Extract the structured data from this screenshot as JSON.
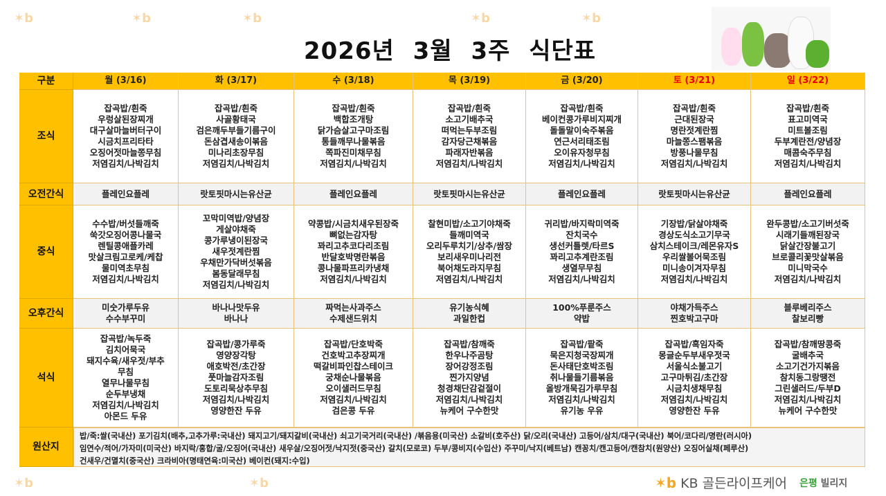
{
  "watermark": "KB골든라이프케어",
  "title": "2026년 3월 3주 식단표",
  "colors": {
    "header_bg": "#ffc000",
    "weekend_text": "#e60000",
    "snack_bg": "#f2f2f2",
    "border": "#e8c27a"
  },
  "header_label": "구분",
  "days": [
    {
      "label": "월 (3/16)",
      "weekend": false
    },
    {
      "label": "화 (3/17)",
      "weekend": false
    },
    {
      "label": "수 (3/18)",
      "weekend": false
    },
    {
      "label": "목 (3/19)",
      "weekend": false
    },
    {
      "label": "금 (3/20)",
      "weekend": false
    },
    {
      "label": "토 (3/21)",
      "weekend": true
    },
    {
      "label": "일 (3/22)",
      "weekend": true
    }
  ],
  "rows": [
    {
      "label": "조식",
      "type": "meal",
      "cells": [
        [
          "잡곡밥/흰죽",
          "우렁살된장찌개",
          "대구살마늘버터구이",
          "시금치프리타타",
          "오징어젓마늘쫑무침",
          "저염김치/나박김치"
        ],
        [
          "잡곡밥/흰죽",
          "사골황태국",
          "검은깨두부들기름구이",
          "돈삼겹새송이볶음",
          "미나리초장무침",
          "저염김치/나박김치"
        ],
        [
          "잡곡밥/흰죽",
          "백합조개탕",
          "닭가슴살고구마조림",
          "통들깨무나물볶음",
          "쪽파진미채무침",
          "저염김치/나박김치"
        ],
        [
          "잡곡밥/흰죽",
          "소고기배추국",
          "떠먹는두부조림",
          "감자당근채볶음",
          "파래자반볶음",
          "저염김치/나박김치"
        ],
        [
          "잡곡밥/흰죽",
          "베이컨콩가루비지찌개",
          "돌돌말이숙주볶음",
          "연근서리태조림",
          "오이유자청무침",
          "저염김치/나박김치"
        ],
        [
          "잡곡밥/흰죽",
          "근대된장국",
          "명란젓계란찜",
          "마늘쫑스팸볶음",
          "방풍나물무침",
          "저염김치/나박김치"
        ],
        [
          "잡곡밥/흰죽",
          "표고미역국",
          "미트볼조림",
          "두부계란전/양념장",
          "매콤숙주무침",
          "저염김치/나박김치"
        ]
      ]
    },
    {
      "label": "오전간식",
      "type": "snack",
      "cells": [
        [
          "플레인요플레"
        ],
        [
          "랏토핏마시는유산균"
        ],
        [
          "플레인요플레"
        ],
        [
          "랏토핏마시는유산균"
        ],
        [
          "플레인요플레"
        ],
        [
          "랏토핏마시는유산균"
        ],
        [
          "플레인요플레"
        ]
      ]
    },
    {
      "label": "중식",
      "type": "meal",
      "cells": [
        [
          "수수밥/버섯들깨죽",
          "쑥갓오징어콩나물국",
          "렌틸콩애플카레",
          "맛살크림고로케/케찹",
          "물미역초무침",
          "저염김치/나박김치"
        ],
        [
          "꼬막미역밥/양념장",
          "게살야채죽",
          "콩가루냉이된장국",
          "새우젓계란찜",
          "우채만가닥버섯볶음",
          "봄동달래무침",
          "저염김치/나박김치"
        ],
        [
          "약콩밥/시금치새우된장죽",
          "뼈없는감자탕",
          "꽈리고추코다리조림",
          "반달호박명란볶음",
          "콩나물파프리카냉채",
          "저염김치/나박김치"
        ],
        [
          "찰현미밥/소고기야채죽",
          "들깨미역국",
          "오리두루치기/상추/쌈장",
          "보리새우미나리전",
          "북어채도라지무침",
          "저염김치/나박김치"
        ],
        [
          "귀리밥/바지락미역죽",
          "잔치국수",
          "생선커틀렛/타르S",
          "꽈리고추계란조림",
          "생열무무침",
          "저염김치/나박김치"
        ],
        [
          "기장밥/닭살야채죽",
          "경상도식소고기무국",
          "삼치스테이크/레몬유자S",
          "우리쌀볼어묵조림",
          "미니송이겨자무침",
          "저염김치/나박김치"
        ],
        [
          "완두콩밥/소고기버섯죽",
          "시래기들깨된장국",
          "닭살간장불고기",
          "브로콜리꽃맛살볶음",
          "미니막국수",
          "저염김치/나박김치"
        ]
      ]
    },
    {
      "label": "오후간식",
      "type": "snack",
      "cells": [
        [
          "미숫가루두유",
          "수수부꾸미"
        ],
        [
          "바나나맛두유",
          "바나나"
        ],
        [
          "짜먹는사과주스",
          "수제샌드위치"
        ],
        [
          "유기농식혜",
          "과일한컵"
        ],
        [
          "100%푸룬주스",
          "약밥"
        ],
        [
          "야채가득주스",
          "찐호박고구마"
        ],
        [
          "블루베리주스",
          "찰보리빵"
        ]
      ]
    },
    {
      "label": "석식",
      "type": "meal",
      "cells": [
        [
          "잡곡밥/녹두죽",
          "김치어묵국",
          "돼지수육/새우젓/부추",
          "무침",
          "열무나물무침",
          "순두부냉채",
          "저염김치/나박김치",
          "아몬드 두유"
        ],
        [
          "잡곡밥/콩가루죽",
          "영양장각탕",
          "애호박전/초간장",
          "풋마늘감자조림",
          "도토리묵상추무침",
          "저염김치/나박김치",
          "영양한잔 두유"
        ],
        [
          "잡곡밥/단호박죽",
          "건호박고추장찌개",
          "떡갈비파인찹스테이크",
          "궁채순나물볶음",
          "오이샐러드무침",
          "저염김치/나박김치",
          "검은콩 두유"
        ],
        [
          "잡곡밥/참깨죽",
          "한우나주곰탕",
          "장어강정조림",
          "찐가지양념",
          "청경채단감겉절이",
          "저염김치/나박김치",
          "뉴케어 구수한맛"
        ],
        [
          "잡곡밥/팥죽",
          "묵은지청국장찌개",
          "돈사태단호박조림",
          "취나물들기름볶음",
          "올방개묵김가루무침",
          "저염김치/나박김치",
          "유기농 우유"
        ],
        [
          "잡곡밥/흑임자죽",
          "몽글순두부새우젓국",
          "서울식소불고기",
          "고구마튀김/초간장",
          "시금치생채무침",
          "저염김치/나박김치",
          "영양한잔 두유"
        ],
        [
          "잡곡밥/참깨땅콩죽",
          "굴배추국",
          "소고기건가지볶음",
          "참치동그랑땡전",
          "그린샐러드/두부D",
          "저염김치/나박김치",
          "뉴케어 구수한맛"
        ]
      ]
    }
  ],
  "origin": {
    "label": "원산지",
    "lines": [
      "밥/죽:쌀(국내산)  포기김치(배추,고추가루:국내산)  돼지고기/돼지갈비(국내산)  쇠고기국거리(국내산) /볶음용(미국산)  소갈비(호주산)  닭/오리(국내산)  고등어/삼치/대구(국내산)  북어/코다리/명란(러시아)",
      "임연수/적어/가자미(미국산)  바지락/홍합/굴/오징어(국내산)  새우살/오징어젓/낙지젓(중국산)  갈치(모로코)  두부/콩비지(수입산)  주꾸미/낙지(베트남)  캔꽁치/캔고등어/캔참치(원양산)  오징어실채(페루산)",
      "건새우/건멸치(중국산)  크라비아(명태연육:미국산)  베이컨(돼지:수입)"
    ]
  },
  "footer": {
    "brand": "KB 골든라이프케어",
    "branch_a": "은평",
    "branch_b": "빌리지"
  }
}
